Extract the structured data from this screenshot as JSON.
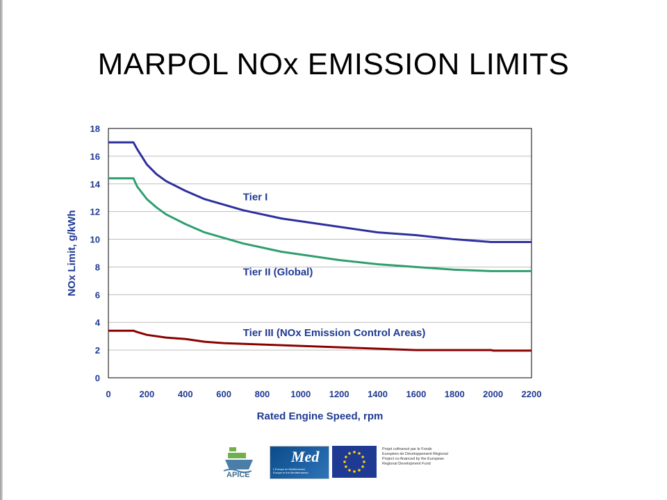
{
  "slide": {
    "title": "MARPOL NOx EMISSION LIMITS"
  },
  "chart_data": {
    "type": "line",
    "title": "",
    "xlabel": "Rated Engine Speed, rpm",
    "ylabel": "NOx Limit, g/kWh",
    "xlim": [
      0,
      2200
    ],
    "ylim": [
      0,
      18
    ],
    "xticks": [
      0,
      200,
      400,
      600,
      800,
      1000,
      1200,
      1400,
      1600,
      1800,
      2000,
      2200
    ],
    "yticks": [
      0,
      2,
      4,
      6,
      8,
      10,
      12,
      14,
      16,
      18
    ],
    "grid": "horizontal",
    "colors": {
      "tier1": "#2e2e9e",
      "tier2": "#2f9e6e",
      "tier3": "#8b0000",
      "axis_label": "#1f3a93",
      "tick_label": "#1f3a93"
    },
    "series": [
      {
        "name": "Tier I",
        "color": "#2e2e9e",
        "x": [
          0,
          130,
          150,
          200,
          250,
          300,
          400,
          500,
          600,
          700,
          800,
          900,
          1000,
          1200,
          1400,
          1600,
          1800,
          1990,
          2000,
          2200
        ],
        "y": [
          17.0,
          17.0,
          16.5,
          15.4,
          14.7,
          14.2,
          13.5,
          12.9,
          12.5,
          12.1,
          11.8,
          11.5,
          11.3,
          10.9,
          10.5,
          10.3,
          10.0,
          9.8,
          9.8,
          9.8
        ]
      },
      {
        "name": "Tier II (Global)",
        "color": "#2f9e6e",
        "x": [
          0,
          130,
          150,
          200,
          250,
          300,
          400,
          500,
          600,
          700,
          800,
          900,
          1000,
          1200,
          1400,
          1600,
          1800,
          1990,
          2000,
          2200
        ],
        "y": [
          14.4,
          14.4,
          13.8,
          12.9,
          12.3,
          11.8,
          11.1,
          10.5,
          10.1,
          9.7,
          9.4,
          9.1,
          8.9,
          8.5,
          8.2,
          8.0,
          7.8,
          7.7,
          7.7,
          7.7
        ]
      },
      {
        "name": "Tier III (NOx Emission Control Areas)",
        "color": "#8b0000",
        "x": [
          0,
          130,
          150,
          200,
          300,
          400,
          500,
          600,
          800,
          1000,
          1200,
          1400,
          1600,
          1800,
          1990,
          2000,
          2200
        ],
        "y": [
          3.4,
          3.4,
          3.3,
          3.1,
          2.9,
          2.8,
          2.6,
          2.5,
          2.4,
          2.3,
          2.2,
          2.1,
          2.0,
          2.0,
          2.0,
          1.96,
          1.96
        ]
      }
    ],
    "annotations": [
      {
        "text": "Tier I",
        "x": 700,
        "y": 12.8,
        "color": "#1f3a93"
      },
      {
        "text": "Tier II (Global)",
        "x": 700,
        "y": 7.4,
        "color": "#1f3a93"
      },
      {
        "text": "Tier III (NOx Emission Control Areas)",
        "x": 700,
        "y": 3.0,
        "color": "#1f3a93"
      }
    ]
  },
  "footer": {
    "apice_label": "APICE",
    "med_label": "Med",
    "med_sub_1": "L'Europe en Méditerranée",
    "med_sub_2": "Europe in the Mediterranean",
    "eu_caption_1": "Projet cofinancé par le Fonds",
    "eu_caption_2": "Européen de Développement Régional",
    "eu_caption_3": "Project co-financed by the European",
    "eu_caption_4": "Regional Development Fund"
  }
}
